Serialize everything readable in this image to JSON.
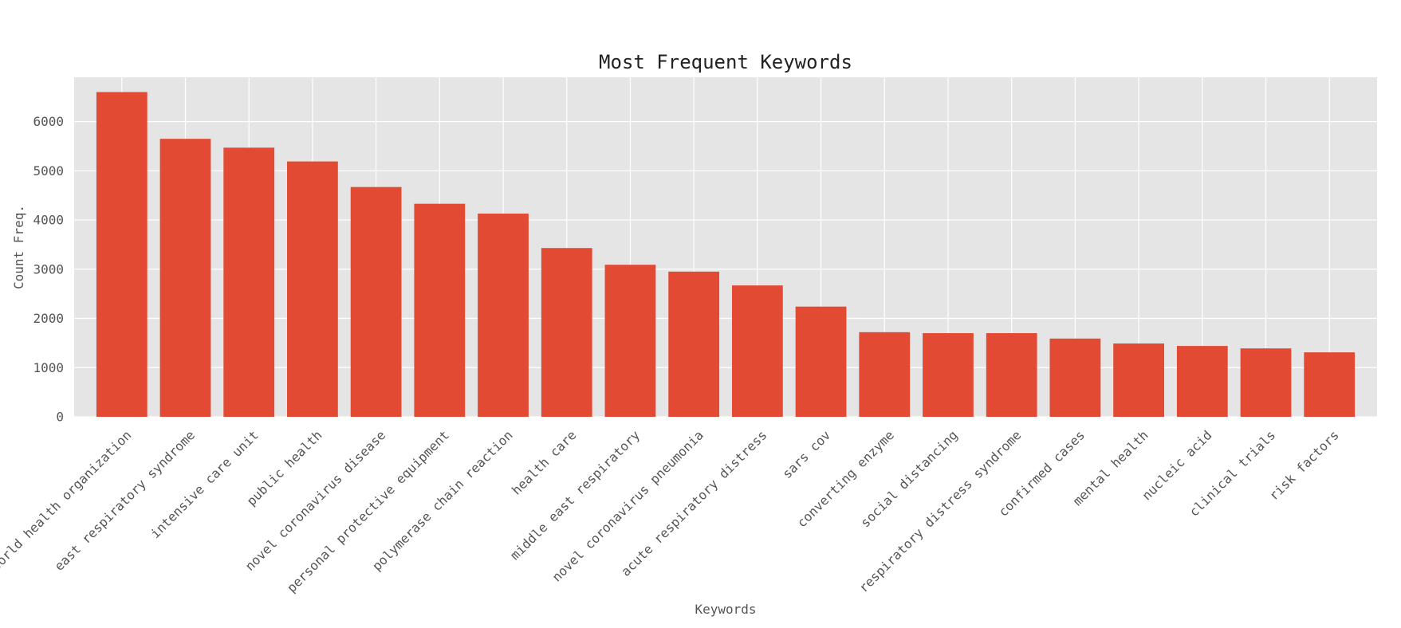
{
  "chart_data": {
    "type": "bar",
    "title": "Most Frequent Keywords",
    "xlabel": "Keywords",
    "ylabel": "Count Freq.",
    "categories": [
      "world health organization",
      "east respiratory syndrome",
      "intensive care unit",
      "public health",
      "novel coronavirus disease",
      "personal protective equipment",
      "polymerase chain reaction",
      "health care",
      "middle east respiratory",
      "novel coronavirus pneumonia",
      "acute respiratory distress",
      "sars cov",
      "converting enzyme",
      "social distancing",
      "respiratory distress syndrome",
      "confirmed cases",
      "mental health",
      "nucleic acid",
      "clinical trials",
      "risk factors"
    ],
    "values": [
      6600,
      5650,
      5470,
      5190,
      4670,
      4330,
      4130,
      3430,
      3090,
      2950,
      2670,
      2240,
      1720,
      1700,
      1700,
      1590,
      1490,
      1440,
      1390,
      1310
    ],
    "ylim": [
      0,
      6900
    ],
    "yticks": [
      0,
      1000,
      2000,
      3000,
      4000,
      5000,
      6000
    ],
    "grid": true,
    "colors": {
      "bar": "#e24a33",
      "plot_background": "#e5e5e5",
      "grid": "#ffffff",
      "text": "#555555",
      "title": "#222222"
    }
  }
}
